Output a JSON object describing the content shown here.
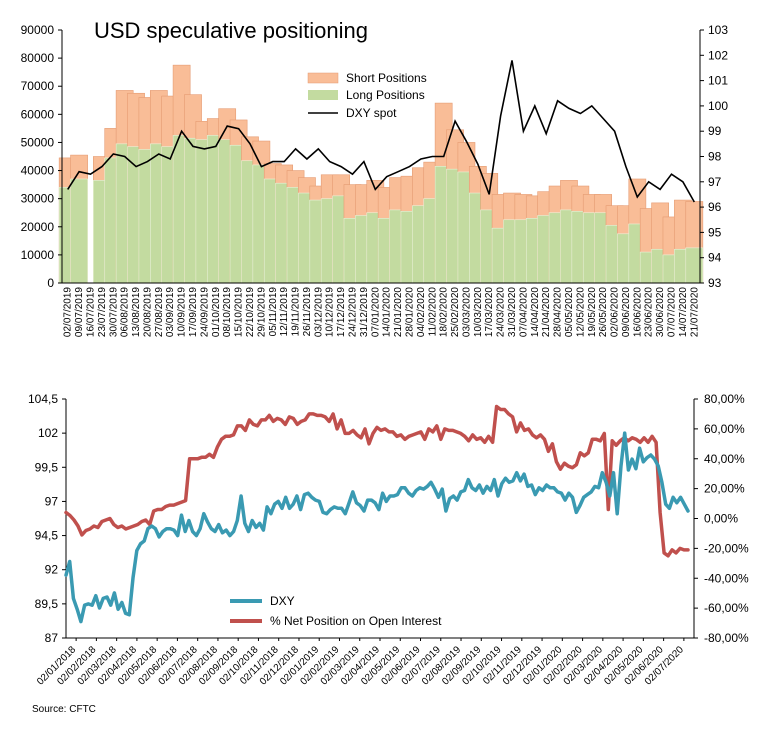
{
  "source_note": "Source: CFTC",
  "chart_data": [
    {
      "type": "bar",
      "title": "USD speculative positioning",
      "legend": [
        "Short Positions",
        "Long Positions",
        "DXY spot"
      ],
      "colors": {
        "short": "#f9bd97",
        "long": "#c3dba0",
        "dxy": "#000000"
      },
      "y_left": {
        "min": 0,
        "max": 90000,
        "ticks": [
          "0",
          "10000",
          "20000",
          "30000",
          "40000",
          "50000",
          "60000",
          "70000",
          "80000",
          "90000"
        ]
      },
      "y_right": {
        "min": 93,
        "max": 103,
        "ticks": [
          "93",
          "94",
          "95",
          "96",
          "97",
          "98",
          "99",
          "100",
          "101",
          "102",
          "103"
        ]
      },
      "categories": [
        "02/07/2019",
        "09/07/2019",
        "16/07/2019",
        "23/07/2019",
        "30/07/2019",
        "06/08/2019",
        "13/08/2019",
        "20/08/2019",
        "27/08/2019",
        "03/09/2019",
        "10/09/2019",
        "17/09/2019",
        "24/09/2019",
        "01/10/2019",
        "08/10/2019",
        "15/10/2019",
        "22/10/2019",
        "29/10/2019",
        "05/11/2019",
        "12/11/2019",
        "19/11/2019",
        "26/11/2019",
        "03/12/2019",
        "10/12/2019",
        "17/12/2019",
        "24/12/2019",
        "31/12/2019",
        "07/01/2020",
        "14/01/2020",
        "21/01/2020",
        "28/01/2020",
        "04/02/2020",
        "11/02/2020",
        "18/02/2020",
        "25/02/2020",
        "03/03/2020",
        "10/03/2020",
        "17/03/2020",
        "24/03/2020",
        "31/03/2020",
        "07/04/2020",
        "14/04/2020",
        "21/04/2020",
        "28/04/2020",
        "05/05/2020",
        "12/05/2020",
        "19/05/2020",
        "26/05/2020",
        "02/06/2020",
        "09/06/2020",
        "16/06/2020",
        "23/06/2020",
        "30/06/2020",
        "07/07/2020",
        "14/07/2020",
        "21/07/2020"
      ],
      "bar_groups": [
        {
          "date": "02/07/2019",
          "short": 44500,
          "long": 34000
        },
        {
          "date": "09/07/2019",
          "short": 45500,
          "long": 37000
        },
        {
          "date": "23/07/2019",
          "short": 45000,
          "long": 36500
        },
        {
          "date": "30/07/2019",
          "short": 55000,
          "long": 44500
        },
        {
          "date": "06/08/2019",
          "short": 68500,
          "long": 49500
        },
        {
          "date": "13/08/2019",
          "short": 67500,
          "long": 48500
        },
        {
          "date": "20/08/2019",
          "short": 66000,
          "long": 47500
        },
        {
          "date": "27/08/2019",
          "short": 68500,
          "long": 49500
        },
        {
          "date": "03/09/2019",
          "short": 66500,
          "long": 48500
        },
        {
          "date": "10/09/2019",
          "short": 77500,
          "long": 52500
        },
        {
          "date": "17/09/2019",
          "short": 67000,
          "long": 51500
        },
        {
          "date": "24/09/2019",
          "short": 57500,
          "long": 51000
        },
        {
          "date": "01/10/2019",
          "short": 58500,
          "long": 52500
        },
        {
          "date": "08/10/2019",
          "short": 62000,
          "long": 51000
        },
        {
          "date": "15/10/2019",
          "short": 58000,
          "long": 49000
        },
        {
          "date": "22/10/2019",
          "short": 52000,
          "long": 43500
        },
        {
          "date": "29/10/2019",
          "short": 50500,
          "long": 42000
        },
        {
          "date": "05/11/2019",
          "short": 42500,
          "long": 37000
        },
        {
          "date": "12/11/2019",
          "short": 42000,
          "long": 35500
        },
        {
          "date": "19/11/2019",
          "short": 40000,
          "long": 34000
        },
        {
          "date": "26/11/2019",
          "short": 37500,
          "long": 32000
        },
        {
          "date": "03/12/2019",
          "short": 34500,
          "long": 29500
        },
        {
          "date": "10/12/2019",
          "short": 38500,
          "long": 30000
        },
        {
          "date": "17/12/2019",
          "short": 38500,
          "long": 31000
        },
        {
          "date": "24/12/2019",
          "short": 35000,
          "long": 23000
        },
        {
          "date": "31/12/2019",
          "short": 35000,
          "long": 24000
        },
        {
          "date": "07/01/2020",
          "short": 36500,
          "long": 25000
        },
        {
          "date": "14/01/2020",
          "short": 34000,
          "long": 23000
        },
        {
          "date": "21/01/2020",
          "short": 37500,
          "long": 26000
        },
        {
          "date": "28/01/2020",
          "short": 38000,
          "long": 25500
        },
        {
          "date": "04/02/2020",
          "short": 41000,
          "long": 27500
        },
        {
          "date": "11/02/2020",
          "short": 43000,
          "long": 30000
        },
        {
          "date": "18/02/2020",
          "short": 64000,
          "long": 41500
        },
        {
          "date": "25/02/2020",
          "short": 54500,
          "long": 40500
        },
        {
          "date": "03/03/2020",
          "short": 50000,
          "long": 39500
        },
        {
          "date": "10/03/2020",
          "short": 41500,
          "long": 32000
        },
        {
          "date": "17/03/2020",
          "short": 39000,
          "long": 26000
        },
        {
          "date": "24/03/2020",
          "short": 31500,
          "long": 19500
        },
        {
          "date": "31/03/2020",
          "short": 32000,
          "long": 22500
        },
        {
          "date": "07/04/2020",
          "short": 31500,
          "long": 22500
        },
        {
          "date": "14/04/2020",
          "short": 31000,
          "long": 23000
        },
        {
          "date": "21/04/2020",
          "short": 32500,
          "long": 24000
        },
        {
          "date": "28/04/2020",
          "short": 34500,
          "long": 25000
        },
        {
          "date": "05/05/2020",
          "short": 36500,
          "long": 26000
        },
        {
          "date": "12/05/2020",
          "short": 34500,
          "long": 25500
        },
        {
          "date": "19/05/2020",
          "short": 31500,
          "long": 25000
        },
        {
          "date": "26/05/2020",
          "short": 31500,
          "long": 25000
        },
        {
          "date": "02/06/2020",
          "short": 27500,
          "long": 20500
        },
        {
          "date": "09/06/2020",
          "short": 27500,
          "long": 17500
        },
        {
          "date": "16/06/2020",
          "short": 37000,
          "long": 21000
        },
        {
          "date": "23/06/2020",
          "short": 26500,
          "long": 11000
        },
        {
          "date": "30/06/2020",
          "short": 28500,
          "long": 12000
        },
        {
          "date": "07/07/2020",
          "short": 23500,
          "long": 10000
        },
        {
          "date": "14/07/2020",
          "short": 29500,
          "long": 12000
        },
        {
          "date": "21/07/2020",
          "short": 29000,
          "long": 12500
        }
      ],
      "dxy_spot": [
        96.7,
        97.4,
        97.3,
        97.6,
        98.1,
        98.0,
        97.6,
        97.8,
        98.1,
        97.9,
        99.0,
        98.4,
        98.3,
        98.4,
        99.2,
        99.1,
        98.5,
        97.6,
        97.8,
        97.8,
        98.3,
        97.9,
        98.3,
        97.8,
        97.6,
        97.3,
        97.8,
        96.7,
        97.2,
        97.4,
        97.6,
        97.9,
        98.0,
        98.0,
        99.4,
        98.6,
        97.7,
        96.5,
        99.6,
        101.8,
        99.0,
        100.0,
        98.9,
        100.2,
        99.9,
        99.7,
        100.0,
        99.5,
        99.0,
        97.6,
        96.4,
        97.0,
        96.7,
        97.3,
        97.0,
        96.2
      ]
    },
    {
      "type": "line",
      "title": "",
      "legend": [
        "DXY",
        "% Net Position on Open Interest"
      ],
      "colors": {
        "dxy": "#3a9ab2",
        "net": "#c0504d"
      },
      "y_left": {
        "min": 87,
        "max": 104.5,
        "ticks": [
          "87",
          "89,5",
          "92",
          "94,5",
          "97",
          "99,5",
          "102",
          "104,5"
        ]
      },
      "y_right": {
        "min": -80,
        "max": 80,
        "ticks": [
          "-80,00%",
          "-60,00%",
          "-40,00%",
          "-20,00%",
          "0,00%",
          "20,00%",
          "40,00%",
          "60,00%",
          "80,00%"
        ]
      },
      "x_ticks": [
        "02/01/2018",
        "02/02/2018",
        "02/03/2018",
        "02/04/2018",
        "02/05/2018",
        "02/06/2018",
        "02/07/2018",
        "02/08/2018",
        "02/09/2018",
        "02/10/2018",
        "02/11/2018",
        "02/12/2018",
        "02/01/2019",
        "02/02/2019",
        "02/03/2019",
        "02/04/2019",
        "02/05/2019",
        "02/06/2019",
        "02/07/2019",
        "02/08/2019",
        "02/09/2019",
        "02/10/2019",
        "02/11/2019",
        "02/12/2019",
        "02/01/2020",
        "02/02/2020",
        "02/03/2020",
        "02/04/2020",
        "02/05/2020",
        "02/06/2020",
        "02/07/2020"
      ],
      "series": [
        {
          "name": "DXY",
          "values": [
            91.6,
            92.6,
            89.9,
            89.1,
            88.2,
            89.4,
            89.5,
            89.4,
            90.1,
            89.2,
            89.9,
            90.0,
            89.4,
            90.3,
            89.1,
            89.6,
            88.8,
            88.7,
            91.4,
            93.4,
            93.9,
            94.1,
            95.0,
            95.2,
            95.0,
            94.4,
            94.8,
            95.0,
            95.0,
            94.9,
            94.5,
            96.0,
            94.8,
            95.6,
            94.8,
            94.5,
            95.0,
            96.1,
            95.5,
            95.0,
            94.8,
            95.3,
            94.7,
            94.9,
            94.5,
            94.8,
            95.6,
            97.4,
            95.4,
            94.8,
            95.6,
            95.1,
            95.4,
            94.9,
            96.6,
            96.1,
            96.8,
            97.0,
            96.5,
            97.3,
            96.5,
            96.8,
            97.4,
            96.4,
            97.5,
            97.6,
            97.3,
            97.1,
            97.0,
            96.2,
            96.1,
            96.4,
            96.6,
            96.5,
            96.5,
            96.1,
            96.9,
            97.7,
            96.9,
            96.7,
            96.3,
            97.1,
            97.1,
            96.9,
            96.4,
            97.6,
            97.0,
            97.4,
            97.4,
            97.5,
            98.0,
            98.0,
            97.6,
            97.4,
            97.8,
            98.0,
            97.9,
            98.1,
            98.4,
            97.9,
            97.3,
            97.9,
            96.3,
            97.2,
            97.4,
            97.1,
            97.7,
            97.8,
            98.6,
            98.0,
            97.8,
            98.2,
            97.6,
            98.1,
            97.8,
            98.6,
            97.4,
            98.3,
            98.7,
            98.4,
            98.5,
            99.1,
            98.5,
            99.0,
            98.1,
            98.2,
            97.5,
            98.0,
            97.8,
            98.2,
            98.0,
            98.0,
            97.7,
            97.6,
            97.1,
            97.6,
            97.3,
            96.2,
            96.7,
            97.3,
            97.5,
            97.7,
            98.1,
            98.0,
            99.1,
            98.4,
            97.4,
            99.1,
            96.1,
            99.6,
            102.0,
            99.3,
            100.1,
            99.4,
            100.9,
            99.9,
            100.2,
            100.4,
            100.1,
            99.6,
            98.4,
            96.8,
            96.5,
            97.3,
            96.9,
            97.3,
            96.8,
            96.3
          ]
        },
        {
          "name": "% Net Position on Open Interest",
          "values": [
            4,
            2,
            -1,
            -5,
            -11,
            -8,
            -7,
            -5,
            -6,
            -2,
            -1,
            0,
            -4,
            -6,
            -5,
            -7,
            -6,
            -5,
            -4,
            -2,
            -1,
            -4,
            5,
            6,
            6,
            8,
            9,
            9,
            10,
            11,
            12,
            40,
            40,
            40,
            41,
            41,
            43,
            41,
            48,
            53,
            55,
            55,
            56,
            62,
            62,
            59,
            66,
            63,
            62,
            66,
            66,
            69,
            65,
            67,
            66,
            63,
            68,
            67,
            63,
            65,
            66,
            70,
            70,
            69,
            69,
            68,
            65,
            70,
            60,
            66,
            57,
            57,
            59,
            56,
            54,
            60,
            50,
            57,
            61,
            59,
            60,
            58,
            58,
            55,
            56,
            53,
            55,
            56,
            57,
            58,
            53,
            60,
            58,
            62,
            53,
            60,
            59,
            59,
            58,
            57,
            55,
            52,
            56,
            53,
            54,
            51,
            55,
            51,
            75,
            73,
            73,
            70,
            68,
            58,
            64,
            59,
            60,
            56,
            54,
            56,
            53,
            45,
            50,
            38,
            33,
            37,
            35,
            34,
            36,
            44,
            42,
            44,
            53,
            53,
            52,
            57,
            6,
            52,
            49,
            52,
            54,
            52,
            54,
            53,
            51,
            54,
            51,
            55,
            51,
            4,
            -23,
            -25,
            -21,
            -23,
            -20,
            -21,
            -21
          ]
        }
      ]
    }
  ]
}
